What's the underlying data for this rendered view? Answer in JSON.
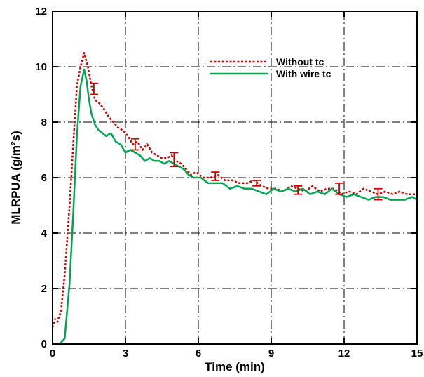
{
  "chart_data": {
    "type": "line",
    "xlabel": "Time (min)",
    "ylabel": "MLRPUA (g/m²s)",
    "xlim": [
      0,
      15
    ],
    "ylim": [
      0,
      12
    ],
    "x_ticks": [
      0,
      3,
      6,
      9,
      12,
      15
    ],
    "y_ticks": [
      0,
      2,
      4,
      6,
      8,
      10,
      12
    ],
    "x_tick_labels": [
      "0",
      "3",
      "6",
      "9",
      "12",
      "15"
    ],
    "y_tick_labels": [
      "0",
      "2",
      "4",
      "6",
      "8",
      "10",
      "12"
    ],
    "grid": true,
    "grid_style": "dash-dot",
    "legend_position": "top-right",
    "series": [
      {
        "name": "Without tc",
        "color": "#cc0000",
        "line_style": "dotted",
        "x": [
          0,
          0.1,
          0.2,
          0.35,
          0.5,
          0.7,
          0.85,
          1.0,
          1.15,
          1.3,
          1.45,
          1.6,
          1.75,
          1.9,
          2.1,
          2.3,
          2.5,
          2.7,
          2.9,
          3.1,
          3.3,
          3.5,
          3.7,
          3.9,
          4.1,
          4.3,
          4.5,
          4.7,
          4.9,
          5.1,
          5.3,
          5.5,
          5.7,
          5.9,
          6.2,
          6.5,
          6.8,
          7.1,
          7.4,
          7.7,
          8.0,
          8.3,
          8.6,
          8.9,
          9.2,
          9.5,
          9.8,
          10.1,
          10.4,
          10.7,
          11.0,
          11.3,
          11.6,
          11.9,
          12.2,
          12.5,
          12.8,
          13.1,
          13.4,
          13.7,
          14.0,
          14.3,
          14.6,
          15.0
        ],
        "y": [
          0.6,
          0.9,
          0.8,
          1.2,
          2.5,
          5.0,
          7.2,
          9.3,
          10.0,
          10.5,
          10.0,
          9.3,
          8.8,
          8.7,
          8.5,
          8.2,
          8.0,
          7.8,
          7.7,
          7.5,
          7.2,
          7.3,
          7.0,
          7.2,
          6.9,
          6.8,
          6.7,
          6.7,
          6.8,
          6.6,
          6.5,
          6.3,
          6.1,
          6.2,
          6.0,
          6.0,
          6.1,
          5.9,
          5.9,
          5.8,
          5.8,
          5.9,
          5.7,
          5.6,
          5.6,
          5.5,
          5.7,
          5.6,
          5.5,
          5.7,
          5.5,
          5.6,
          5.6,
          5.4,
          5.5,
          5.4,
          5.6,
          5.5,
          5.4,
          5.5,
          5.4,
          5.5,
          5.4,
          5.4
        ]
      },
      {
        "name": "With wire tc",
        "color": "#00a651",
        "line_style": "solid",
        "x": [
          0.3,
          0.5,
          0.7,
          0.85,
          1.0,
          1.15,
          1.3,
          1.4,
          1.5,
          1.6,
          1.75,
          1.9,
          2.05,
          2.2,
          2.4,
          2.6,
          2.8,
          3.0,
          3.2,
          3.4,
          3.6,
          3.8,
          4.0,
          4.2,
          4.4,
          4.6,
          4.8,
          5.0,
          5.2,
          5.4,
          5.6,
          5.8,
          6.1,
          6.4,
          6.7,
          7.0,
          7.3,
          7.6,
          7.9,
          8.2,
          8.5,
          8.8,
          9.1,
          9.4,
          9.7,
          10.0,
          10.3,
          10.6,
          10.9,
          11.2,
          11.5,
          11.8,
          12.1,
          12.4,
          12.7,
          13.0,
          13.3,
          13.6,
          13.9,
          14.2,
          14.5,
          14.8,
          15.0
        ],
        "y": [
          0.0,
          0.2,
          2.2,
          4.7,
          7.5,
          9.3,
          9.9,
          9.5,
          8.8,
          8.3,
          7.9,
          7.7,
          7.6,
          7.5,
          7.6,
          7.3,
          7.2,
          6.9,
          7.0,
          6.9,
          6.8,
          6.6,
          6.7,
          6.6,
          6.6,
          6.5,
          6.6,
          6.5,
          6.4,
          6.3,
          6.1,
          6.0,
          6.0,
          5.8,
          5.8,
          5.8,
          5.6,
          5.7,
          5.6,
          5.6,
          5.5,
          5.4,
          5.6,
          5.5,
          5.6,
          5.5,
          5.6,
          5.4,
          5.5,
          5.4,
          5.6,
          5.4,
          5.3,
          5.4,
          5.3,
          5.2,
          5.3,
          5.3,
          5.2,
          5.2,
          5.2,
          5.3,
          5.2
        ]
      }
    ],
    "error_bars": {
      "series": "Without tc",
      "color": "#cc0000",
      "points": [
        {
          "x": 1.7,
          "low": 9.0,
          "high": 9.4
        },
        {
          "x": 3.4,
          "low": 7.0,
          "high": 7.4
        },
        {
          "x": 5.0,
          "low": 6.4,
          "high": 6.9
        },
        {
          "x": 6.7,
          "low": 5.9,
          "high": 6.2
        },
        {
          "x": 8.4,
          "low": 5.7,
          "high": 5.9
        },
        {
          "x": 10.1,
          "low": 5.4,
          "high": 5.7
        },
        {
          "x": 11.8,
          "low": 5.4,
          "high": 5.8
        },
        {
          "x": 13.4,
          "low": 5.2,
          "high": 5.6
        }
      ]
    }
  }
}
